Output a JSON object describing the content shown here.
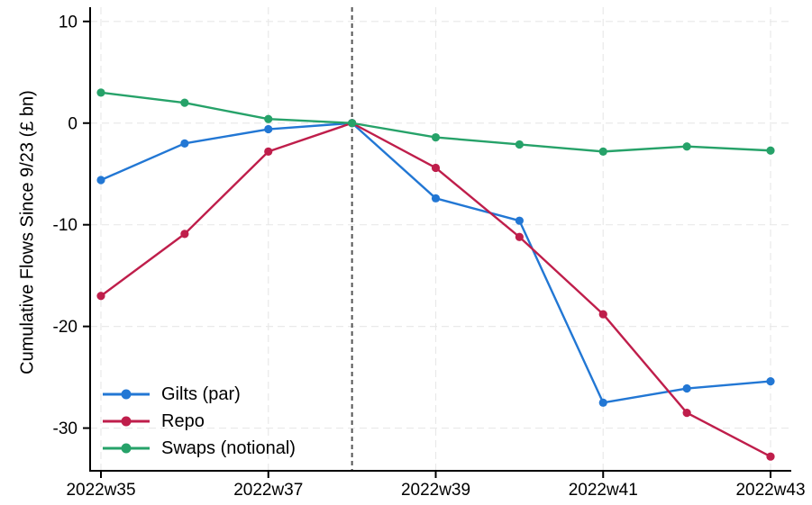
{
  "figure": {
    "background": "#ffffff",
    "axis_color": "#000000",
    "grid_color": "#e9e9e9",
    "text_color": "#000000"
  },
  "chart_data": {
    "type": "line",
    "title": "",
    "xlabel": "",
    "ylabel": "Cumulative Flows Since 9/23 (£ bn)",
    "x_categories": [
      "2022w35",
      "2022w36",
      "2022w37",
      "2022w38",
      "2022w39",
      "2022w40",
      "2022w41",
      "2022w42",
      "2022w43"
    ],
    "x_tick_indices": [
      0,
      2,
      4,
      6,
      8
    ],
    "x_tick_labels": [
      "2022w35",
      "2022w37",
      "2022w39",
      "2022w41",
      "2022w43"
    ],
    "y_ticks": [
      10,
      0,
      -10,
      -20,
      -30
    ],
    "ylim": [
      -34.2,
      11.4
    ],
    "grid": true,
    "legend_position": "bottom-left-inside",
    "reference_line": {
      "x_index": 3,
      "x_category": "2022w38",
      "style": "dashed",
      "color": "#555555"
    },
    "series": [
      {
        "name": "Gilts (par)",
        "color": "#2277d4",
        "values": [
          -5.6,
          -2.0,
          -0.6,
          0,
          -7.4,
          -9.6,
          -27.5,
          -26.1,
          -25.4
        ]
      },
      {
        "name": "Repo",
        "color": "#bf1e4b",
        "values": [
          -17.0,
          -10.9,
          -2.8,
          0,
          -4.4,
          -11.2,
          -18.8,
          -28.5,
          -32.8
        ]
      },
      {
        "name": "Swaps (notional)",
        "color": "#26a269",
        "values": [
          3.0,
          2.0,
          0.4,
          0,
          -1.4,
          -2.1,
          -2.8,
          -2.3,
          -2.7
        ]
      }
    ]
  }
}
